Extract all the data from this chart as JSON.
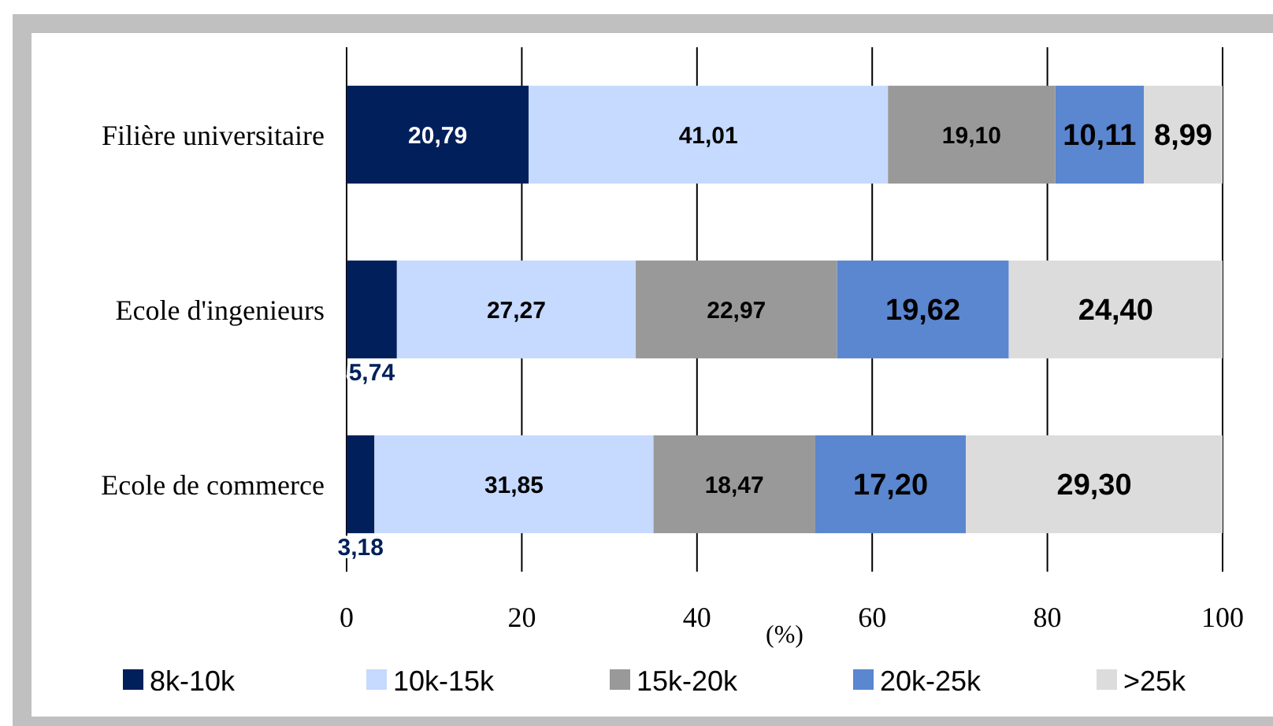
{
  "chart_data": {
    "type": "bar",
    "orientation": "horizontal",
    "stacked": true,
    "categories": [
      "Filière universitaire",
      "Ecole d'ingenieurs",
      "Ecole de commerce"
    ],
    "xlabel": "(%)",
    "xlim": [
      0,
      100
    ],
    "xticks": [
      0,
      20,
      40,
      60,
      80,
      100
    ],
    "grid": "x",
    "legend": "bottom",
    "series": [
      {
        "name": "8k-10k",
        "color": "#001f5b",
        "values": [
          20.79,
          5.74,
          3.18
        ],
        "value_labels": [
          "20,79",
          "5,74",
          "3,18"
        ]
      },
      {
        "name": "10k-15k",
        "color": "#c6d9fe",
        "values": [
          41.01,
          27.27,
          31.85
        ],
        "value_labels": [
          "41,01",
          "27,27",
          "31,85"
        ]
      },
      {
        "name": "15k-20k",
        "color": "#999999",
        "values": [
          19.1,
          22.97,
          18.47
        ],
        "value_labels": [
          "19,10",
          "22,97",
          "18,47"
        ]
      },
      {
        "name": "20k-25k",
        "color": "#5b86d0",
        "values": [
          10.11,
          19.62,
          17.2
        ],
        "value_labels": [
          "10,11",
          "19,62",
          "17,20"
        ]
      },
      {
        "name": ">25k",
        "color": "#dcdcdc",
        "values": [
          8.99,
          24.4,
          29.3
        ],
        "value_labels": [
          "8,99",
          "24,40",
          "29,30"
        ]
      }
    ]
  }
}
